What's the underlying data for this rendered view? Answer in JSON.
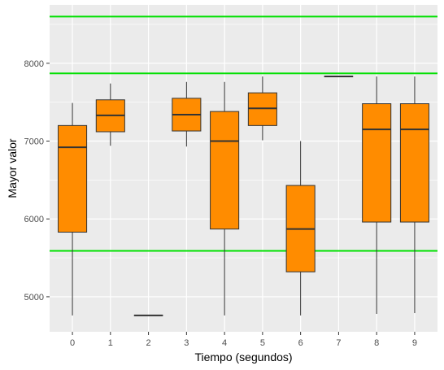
{
  "chart_data": {
    "type": "box",
    "title": "",
    "xlabel": "Tiempo (segundos)",
    "ylabel": "Mayor valor",
    "categories": [
      "0",
      "1",
      "2",
      "3",
      "4",
      "5",
      "6",
      "7",
      "8",
      "9"
    ],
    "ylim": [
      4550,
      8750
    ],
    "y_ticks": [
      5000,
      6000,
      7000,
      8000
    ],
    "boxes": [
      {
        "x": "0",
        "min": 4760,
        "q1": 5830,
        "median": 6920,
        "q3": 7200,
        "max": 7490
      },
      {
        "x": "1",
        "min": 6940,
        "q1": 7120,
        "median": 7330,
        "q3": 7530,
        "max": 7740
      },
      {
        "x": "2",
        "min": 4760,
        "q1": 4760,
        "median": 4760,
        "q3": 4760,
        "max": 4760
      },
      {
        "x": "3",
        "min": 6930,
        "q1": 7130,
        "median": 7340,
        "q3": 7550,
        "max": 7760
      },
      {
        "x": "4",
        "min": 4760,
        "q1": 5870,
        "median": 7000,
        "q3": 7380,
        "max": 7760
      },
      {
        "x": "5",
        "min": 7010,
        "q1": 7200,
        "median": 7420,
        "q3": 7620,
        "max": 7830
      },
      {
        "x": "6",
        "min": 4760,
        "q1": 5320,
        "median": 5870,
        "q3": 6430,
        "max": 7000
      },
      {
        "x": "7",
        "min": 7830,
        "q1": 7830,
        "median": 7830,
        "q3": 7830,
        "max": 7830
      },
      {
        "x": "8",
        "min": 4780,
        "q1": 5960,
        "median": 7150,
        "q3": 7480,
        "max": 7830
      },
      {
        "x": "9",
        "min": 4790,
        "q1": 5960,
        "median": 7150,
        "q3": 7480,
        "max": 7830
      }
    ],
    "reference_lines": [
      8600,
      7870,
      5590
    ],
    "colors": {
      "box_fill": "#FF8C00",
      "box_stroke": "#333333",
      "reference_line": "#00E000",
      "panel_bg": "#EBEBEB",
      "grid": "#FFFFFF"
    },
    "grid": true,
    "legend": "none"
  }
}
